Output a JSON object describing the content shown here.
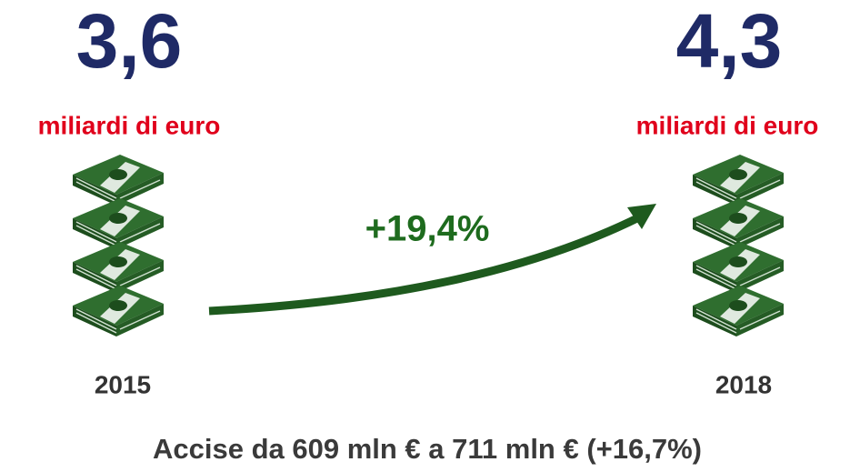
{
  "left": {
    "value": "3,6",
    "unit": "miliardi di euro",
    "year": "2015"
  },
  "right": {
    "value": "4,3",
    "unit": "miliardi di euro",
    "year": "2018"
  },
  "growth": "+19,4%",
  "footer": "Accise da 609 mln € a 711 mln € (+16,7%)"
}
